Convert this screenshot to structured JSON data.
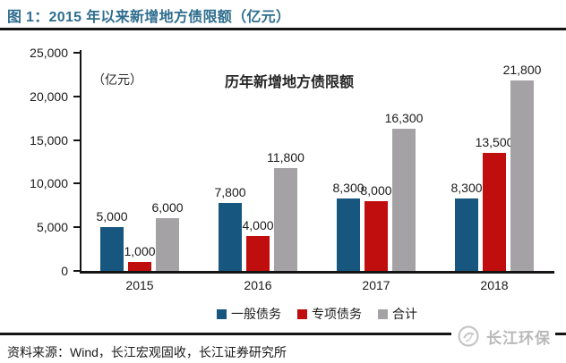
{
  "figure": {
    "title": "图 1：2015 年以来新增地方债限额（亿元）"
  },
  "chart_data": {
    "type": "bar",
    "title": "历年新增地方债限额",
    "unit_label": "（亿元）",
    "categories": [
      "2015",
      "2016",
      "2017",
      "2018"
    ],
    "series": [
      {
        "name": "一般债务",
        "color": "#16567F",
        "values": [
          5000,
          7800,
          8300,
          8300
        ],
        "labels": [
          "5,000",
          "7,800",
          "8,300",
          "8,300"
        ]
      },
      {
        "name": "专项债务",
        "color": "#C00D0D",
        "values": [
          1000,
          4000,
          8000,
          13500
        ],
        "labels": [
          "1,000",
          "4,000",
          "8,000",
          "13,500"
        ]
      },
      {
        "name": "合计",
        "color": "#A5A2A5",
        "values": [
          6000,
          11800,
          16300,
          21800
        ],
        "labels": [
          "6,000",
          "11,800",
          "16,300",
          "21,800"
        ]
      }
    ],
    "ylim": [
      0,
      25000
    ],
    "ytick_labels": [
      "25,000",
      "20,000",
      "15,000",
      "10,000",
      "5,000",
      "0"
    ],
    "legend_position": "bottom",
    "grid": false
  },
  "footer": {
    "source": "资料来源：Wind，长江宏观固收，长江证券研究所",
    "watermark": "长江环保"
  }
}
